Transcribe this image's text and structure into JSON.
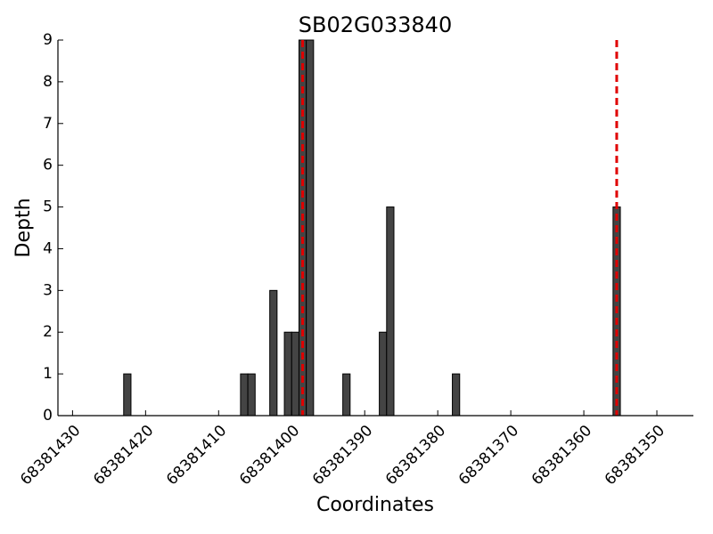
{
  "chart_data": {
    "type": "bar",
    "title": "SB02G033840",
    "xlabel": "Coordinates",
    "ylabel": "Depth",
    "x": [
      68381422,
      68381406,
      68381405,
      68381402,
      68381400,
      68381399,
      68381398,
      68381397,
      68381392,
      68381387,
      68381386,
      68381377,
      68381355
    ],
    "values": [
      1,
      1,
      1,
      3,
      2,
      2,
      9,
      9,
      1,
      2,
      5,
      1,
      5
    ],
    "color": "#444444",
    "vlines": [
      68381398.5,
      68381355.5
    ],
    "vline_color": "#e00000",
    "xlim": [
      68381432,
      68381345
    ],
    "xticks": [
      68381430,
      68381420,
      68381410,
      68381400,
      68381390,
      68381380,
      68381370,
      68381360,
      68381350
    ],
    "ylim": [
      0,
      9
    ],
    "yticks": [
      0,
      1,
      2,
      3,
      4,
      5,
      6,
      7,
      8,
      9
    ]
  }
}
